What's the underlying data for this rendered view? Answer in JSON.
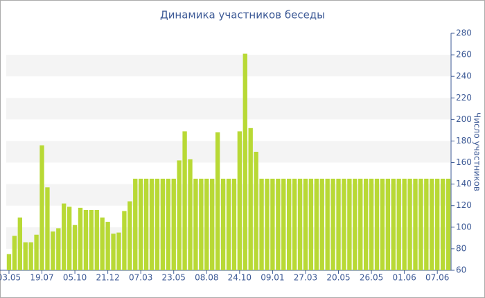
{
  "chart_data": {
    "type": "bar",
    "title": "Динамика участников беседы",
    "y_label": "Число участников",
    "categories": [
      "03.05",
      null,
      null,
      null,
      null,
      null,
      "19.07",
      null,
      null,
      null,
      null,
      null,
      "05.10",
      null,
      null,
      null,
      null,
      null,
      "21.12",
      null,
      null,
      null,
      null,
      null,
      "07.03",
      null,
      null,
      null,
      null,
      null,
      "23.05",
      null,
      null,
      null,
      null,
      null,
      "08.08",
      null,
      null,
      null,
      null,
      null,
      "24.10",
      null,
      null,
      null,
      null,
      null,
      "09.01",
      null,
      null,
      null,
      null,
      null,
      "27.03",
      null,
      null,
      null,
      null,
      null,
      "20.05",
      null,
      null,
      null,
      null,
      null,
      "26.05",
      null,
      null,
      null,
      null,
      null,
      "01.06",
      null,
      null,
      null,
      null,
      null,
      "07.06",
      null,
      null
    ],
    "values": [
      75,
      92,
      109,
      86,
      86,
      93,
      176,
      137,
      96,
      99,
      122,
      119,
      102,
      118,
      116,
      116,
      116,
      109,
      105,
      94,
      95,
      115,
      124,
      145,
      145,
      145,
      145,
      145,
      145,
      145,
      145,
      162,
      189,
      163,
      145,
      145,
      145,
      145,
      188,
      145,
      145,
      145,
      189,
      261,
      192,
      170,
      145,
      145,
      145,
      145,
      145,
      145,
      145,
      145,
      145,
      145,
      145,
      145,
      145,
      145,
      145,
      145,
      145,
      145,
      145,
      145,
      145,
      145,
      145,
      145,
      145,
      145,
      145,
      145,
      145,
      145,
      145,
      145,
      145,
      145,
      145
    ],
    "color": "#b8d935",
    "ylim": [
      60,
      280
    ],
    "yticks": [
      60,
      80,
      100,
      120,
      140,
      160,
      180,
      200,
      220,
      240,
      260,
      280
    ],
    "grid": true,
    "y_axis_side": "right"
  }
}
